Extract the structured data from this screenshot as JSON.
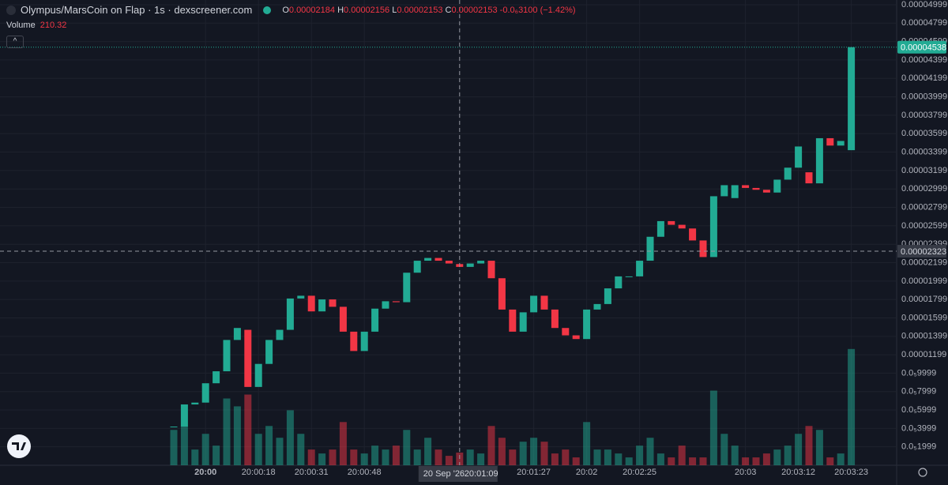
{
  "chart_data": {
    "type": "candlestick",
    "title": "Olympus/MarsCoin on Flap · 1s · dexscreener.com",
    "legend": {
      "labels": [
        "O",
        "H",
        "L",
        "C"
      ],
      "high": 2.156e-05,
      "low": 2.153e-05,
      "change": "-0.0₆3100 (−1.42%)"
    },
    "volume_label": "Volume",
    "categories": [
      null,
      null,
      null,
      "20:00",
      null,
      null,
      null,
      null,
      "20:00:18",
      null,
      null,
      null,
      null,
      "20:00:31",
      null,
      null,
      null,
      null,
      "20:00:48",
      null,
      null,
      null,
      null,
      null,
      null,
      null,
      null,
      "20:01:09",
      null,
      null,
      null,
      null,
      null,
      null,
      "20:01:27",
      null,
      null,
      null,
      null,
      "20:02",
      null,
      null,
      null,
      null,
      "20:02:25",
      null,
      null,
      null,
      null,
      null,
      null,
      null,
      null,
      null,
      "20:03",
      null,
      null,
      null,
      null,
      "20:03:12",
      null,
      null,
      null,
      null,
      "20:03:23"
    ],
    "open": [
      4.2e-06,
      4.2e-06,
      6.6e-06,
      6.8e-06,
      8.9e-06,
      1.02e-05,
      1.36e-05,
      1.47e-05,
      8.5e-06,
      1.1e-05,
      1.36e-05,
      1.47e-05,
      1.81e-05,
      1.84e-05,
      1.67e-05,
      1.8e-05,
      1.72e-05,
      1.45e-05,
      1.24e-05,
      1.45e-05,
      1.7e-05,
      1.78e-05,
      1.77e-05,
      2.09e-05,
      2.22e-05,
      2.25e-05,
      2.22e-05,
      2.184e-05,
      2.153e-05,
      2.19e-05,
      2.22e-05,
      2.03e-05,
      1.69e-05,
      1.45e-05,
      1.66e-05,
      1.84e-05,
      1.69e-05,
      1.49e-05,
      1.41e-05,
      1.37e-05,
      1.69e-05,
      1.75e-05,
      1.92e-05,
      2.05e-05,
      2.05e-05,
      2.22e-05,
      2.48e-05,
      2.65e-05,
      2.61e-05,
      2.57e-05,
      2.44e-05,
      2.26e-05,
      2.92e-05,
      2.9e-05,
      3.04e-05,
      3.01e-05,
      2.99e-05,
      2.96e-05,
      3.1e-05,
      3.23e-05,
      3.18e-05,
      3.06e-05,
      3.55e-05,
      3.47e-05,
      3.42e-05
    ],
    "close": [
      4.2e-06,
      6.6e-06,
      6.8e-06,
      8.9e-06,
      1.02e-05,
      1.36e-05,
      1.49e-05,
      8.5e-06,
      1.1e-05,
      1.36e-05,
      1.47e-05,
      1.81e-05,
      1.84e-05,
      1.67e-05,
      1.8e-05,
      1.72e-05,
      1.45e-05,
      1.24e-05,
      1.45e-05,
      1.7e-05,
      1.78e-05,
      1.77e-05,
      2.09e-05,
      2.22e-05,
      2.25e-05,
      2.22e-05,
      2.19e-05,
      2.153e-05,
      2.19e-05,
      2.22e-05,
      2.03e-05,
      1.69e-05,
      1.45e-05,
      1.66e-05,
      1.84e-05,
      1.69e-05,
      1.49e-05,
      1.41e-05,
      1.37e-05,
      1.69e-05,
      1.75e-05,
      1.92e-05,
      2.05e-05,
      2.05e-05,
      2.22e-05,
      2.48e-05,
      2.65e-05,
      2.61e-05,
      2.57e-05,
      2.44e-05,
      2.26e-05,
      2.92e-05,
      3.04e-05,
      3.04e-05,
      3.01e-05,
      2.99e-05,
      2.96e-05,
      3.1e-05,
      3.23e-05,
      3.46e-05,
      3.06e-05,
      3.55e-05,
      3.47e-05,
      3.52e-05,
      4.538e-05
    ],
    "volumes": [
      585,
      650,
      260,
      520,
      325,
      1105,
      975,
      1170,
      520,
      650,
      455,
      910,
      520,
      260,
      195,
      260,
      715,
      260,
      195,
      325,
      260,
      325,
      585,
      260,
      455,
      260,
      156,
      210.32,
      260,
      195,
      650,
      455,
      260,
      390,
      455,
      390,
      195,
      260,
      130,
      715,
      260,
      260,
      195,
      130,
      325,
      455,
      195,
      130,
      325,
      130,
      130,
      1235,
      520,
      325,
      130,
      130,
      195,
      260,
      325,
      520,
      650,
      585,
      130,
      195,
      1924
    ],
    "up_color": "#22ab94",
    "down_color": "#f23645",
    "ylim": [
      0,
      5.05e-05
    ],
    "vlim": [
      0,
      7700
    ],
    "yticks": [
      {
        "value": 4.999e-05,
        "label": "0.00004999"
      },
      {
        "value": 4.799e-05,
        "label": "0.00004799"
      },
      {
        "value": 4.599e-05,
        "label": "0.00004599"
      },
      {
        "value": 4.399e-05,
        "label": "0.00004399"
      },
      {
        "value": 4.199e-05,
        "label": "0.00004199"
      },
      {
        "value": 3.999e-05,
        "label": "0.00003999"
      },
      {
        "value": 3.799e-05,
        "label": "0.00003799"
      },
      {
        "value": 3.599e-05,
        "label": "0.00003599"
      },
      {
        "value": 3.399e-05,
        "label": "0.00003399"
      },
      {
        "value": 3.199e-05,
        "label": "0.00003199"
      },
      {
        "value": 2.999e-05,
        "label": "0.00002999"
      },
      {
        "value": 2.799e-05,
        "label": "0.00002799"
      },
      {
        "value": 2.599e-05,
        "label": "0.00002599"
      },
      {
        "value": 2.399e-05,
        "label": "0.00002399"
      },
      {
        "value": 2.199e-05,
        "label": "0.00002199"
      },
      {
        "value": 1.999e-05,
        "label": "0.00001999"
      },
      {
        "value": 1.799e-05,
        "label": "0.00001799"
      },
      {
        "value": 1.599e-05,
        "label": "0.00001599"
      },
      {
        "value": 1.399e-05,
        "label": "0.00001399"
      },
      {
        "value": 1.199e-05,
        "label": "0.00001199"
      },
      {
        "value": 9.999e-06,
        "label": "0.0₅9999"
      },
      {
        "value": 7.999e-06,
        "label": "0.0₅7999"
      },
      {
        "value": 5.999e-06,
        "label": "0.0₅5999"
      },
      {
        "value": 3.999e-06,
        "label": "0.0₅3999"
      },
      {
        "value": 1.999e-06,
        "label": "0.0₅1999"
      }
    ],
    "grid": true,
    "crosshair": {
      "date": "20 Sep '26",
      "time": "20:01:09",
      "price": 2.323e-05
    }
  }
}
